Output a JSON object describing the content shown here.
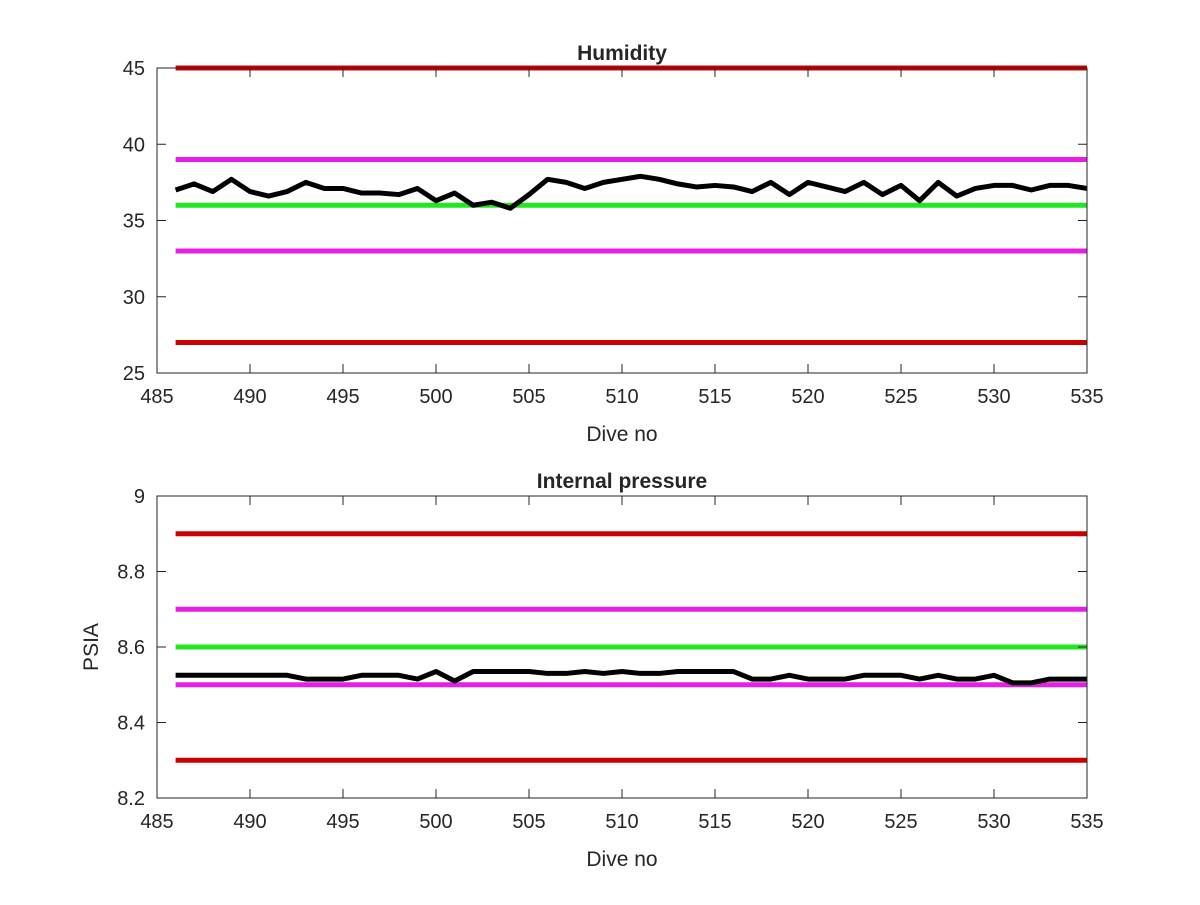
{
  "chart_data": [
    {
      "type": "line",
      "title": "Humidity",
      "xlabel": "Dive no",
      "ylabel": "",
      "xlim": [
        485,
        535
      ],
      "ylim": [
        25,
        45
      ],
      "xticks": [
        485,
        490,
        495,
        500,
        505,
        510,
        515,
        520,
        525,
        530,
        535
      ],
      "yticks": [
        25,
        30,
        35,
        40,
        45
      ],
      "grid": false,
      "reference_lines": [
        {
          "y": 45,
          "color": "#cc0000"
        },
        {
          "y": 39,
          "color": "#e61ee6"
        },
        {
          "y": 36,
          "color": "#22e622"
        },
        {
          "y": 33,
          "color": "#e61ee6"
        },
        {
          "y": 27,
          "color": "#cc0000"
        }
      ],
      "series": [
        {
          "color": "#000000",
          "x": [
            486,
            487,
            488,
            489,
            490,
            491,
            492,
            493,
            494,
            495,
            496,
            497,
            498,
            499,
            500,
            501,
            502,
            503,
            504,
            505,
            506,
            507,
            508,
            509,
            510,
            511,
            512,
            513,
            514,
            515,
            516,
            517,
            518,
            519,
            520,
            521,
            522,
            523,
            524,
            525,
            526,
            527,
            528,
            529,
            530,
            531,
            532,
            533,
            534,
            535
          ],
          "values": [
            37.0,
            37.4,
            36.9,
            37.7,
            36.9,
            36.6,
            36.9,
            37.5,
            37.1,
            37.1,
            36.8,
            36.8,
            36.7,
            37.1,
            36.3,
            36.8,
            36.0,
            36.2,
            35.8,
            36.7,
            37.7,
            37.5,
            37.1,
            37.5,
            37.7,
            37.9,
            37.7,
            37.4,
            37.2,
            37.3,
            37.2,
            36.9,
            37.5,
            36.7,
            37.5,
            37.2,
            36.9,
            37.5,
            36.7,
            37.3,
            36.3,
            37.5,
            36.6,
            37.1,
            37.3,
            37.3,
            37.0,
            37.3,
            37.3,
            37.1
          ]
        }
      ]
    },
    {
      "type": "line",
      "title": "Internal pressure",
      "xlabel": "Dive no",
      "ylabel": "PSIA",
      "xlim": [
        485,
        535
      ],
      "ylim": [
        8.2,
        9.0
      ],
      "xticks": [
        485,
        490,
        495,
        500,
        505,
        510,
        515,
        520,
        525,
        530,
        535
      ],
      "yticks": [
        8.2,
        8.4,
        8.6,
        8.8,
        9.0
      ],
      "ytick_labels": [
        "8.2",
        "8.4",
        "8.6",
        "8.8",
        "9"
      ],
      "grid": false,
      "reference_lines": [
        {
          "y": 8.9,
          "color": "#cc0000"
        },
        {
          "y": 8.7,
          "color": "#e61ee6"
        },
        {
          "y": 8.6,
          "color": "#22e622"
        },
        {
          "y": 8.5,
          "color": "#e61ee6"
        },
        {
          "y": 8.3,
          "color": "#cc0000"
        }
      ],
      "series": [
        {
          "color": "#000000",
          "x": [
            486,
            487,
            488,
            489,
            490,
            491,
            492,
            493,
            494,
            495,
            496,
            497,
            498,
            499,
            500,
            501,
            502,
            503,
            504,
            505,
            506,
            507,
            508,
            509,
            510,
            511,
            512,
            513,
            514,
            515,
            516,
            517,
            518,
            519,
            520,
            521,
            522,
            523,
            524,
            525,
            526,
            527,
            528,
            529,
            530,
            531,
            532,
            533,
            534,
            535
          ],
          "values": [
            8.525,
            8.525,
            8.525,
            8.525,
            8.525,
            8.525,
            8.525,
            8.515,
            8.515,
            8.515,
            8.525,
            8.525,
            8.525,
            8.515,
            8.535,
            8.51,
            8.535,
            8.535,
            8.535,
            8.535,
            8.53,
            8.53,
            8.535,
            8.53,
            8.535,
            8.53,
            8.53,
            8.535,
            8.535,
            8.535,
            8.535,
            8.515,
            8.515,
            8.525,
            8.515,
            8.515,
            8.515,
            8.525,
            8.525,
            8.525,
            8.515,
            8.525,
            8.515,
            8.515,
            8.525,
            8.505,
            8.505,
            8.515,
            8.515,
            8.515
          ]
        }
      ]
    }
  ]
}
